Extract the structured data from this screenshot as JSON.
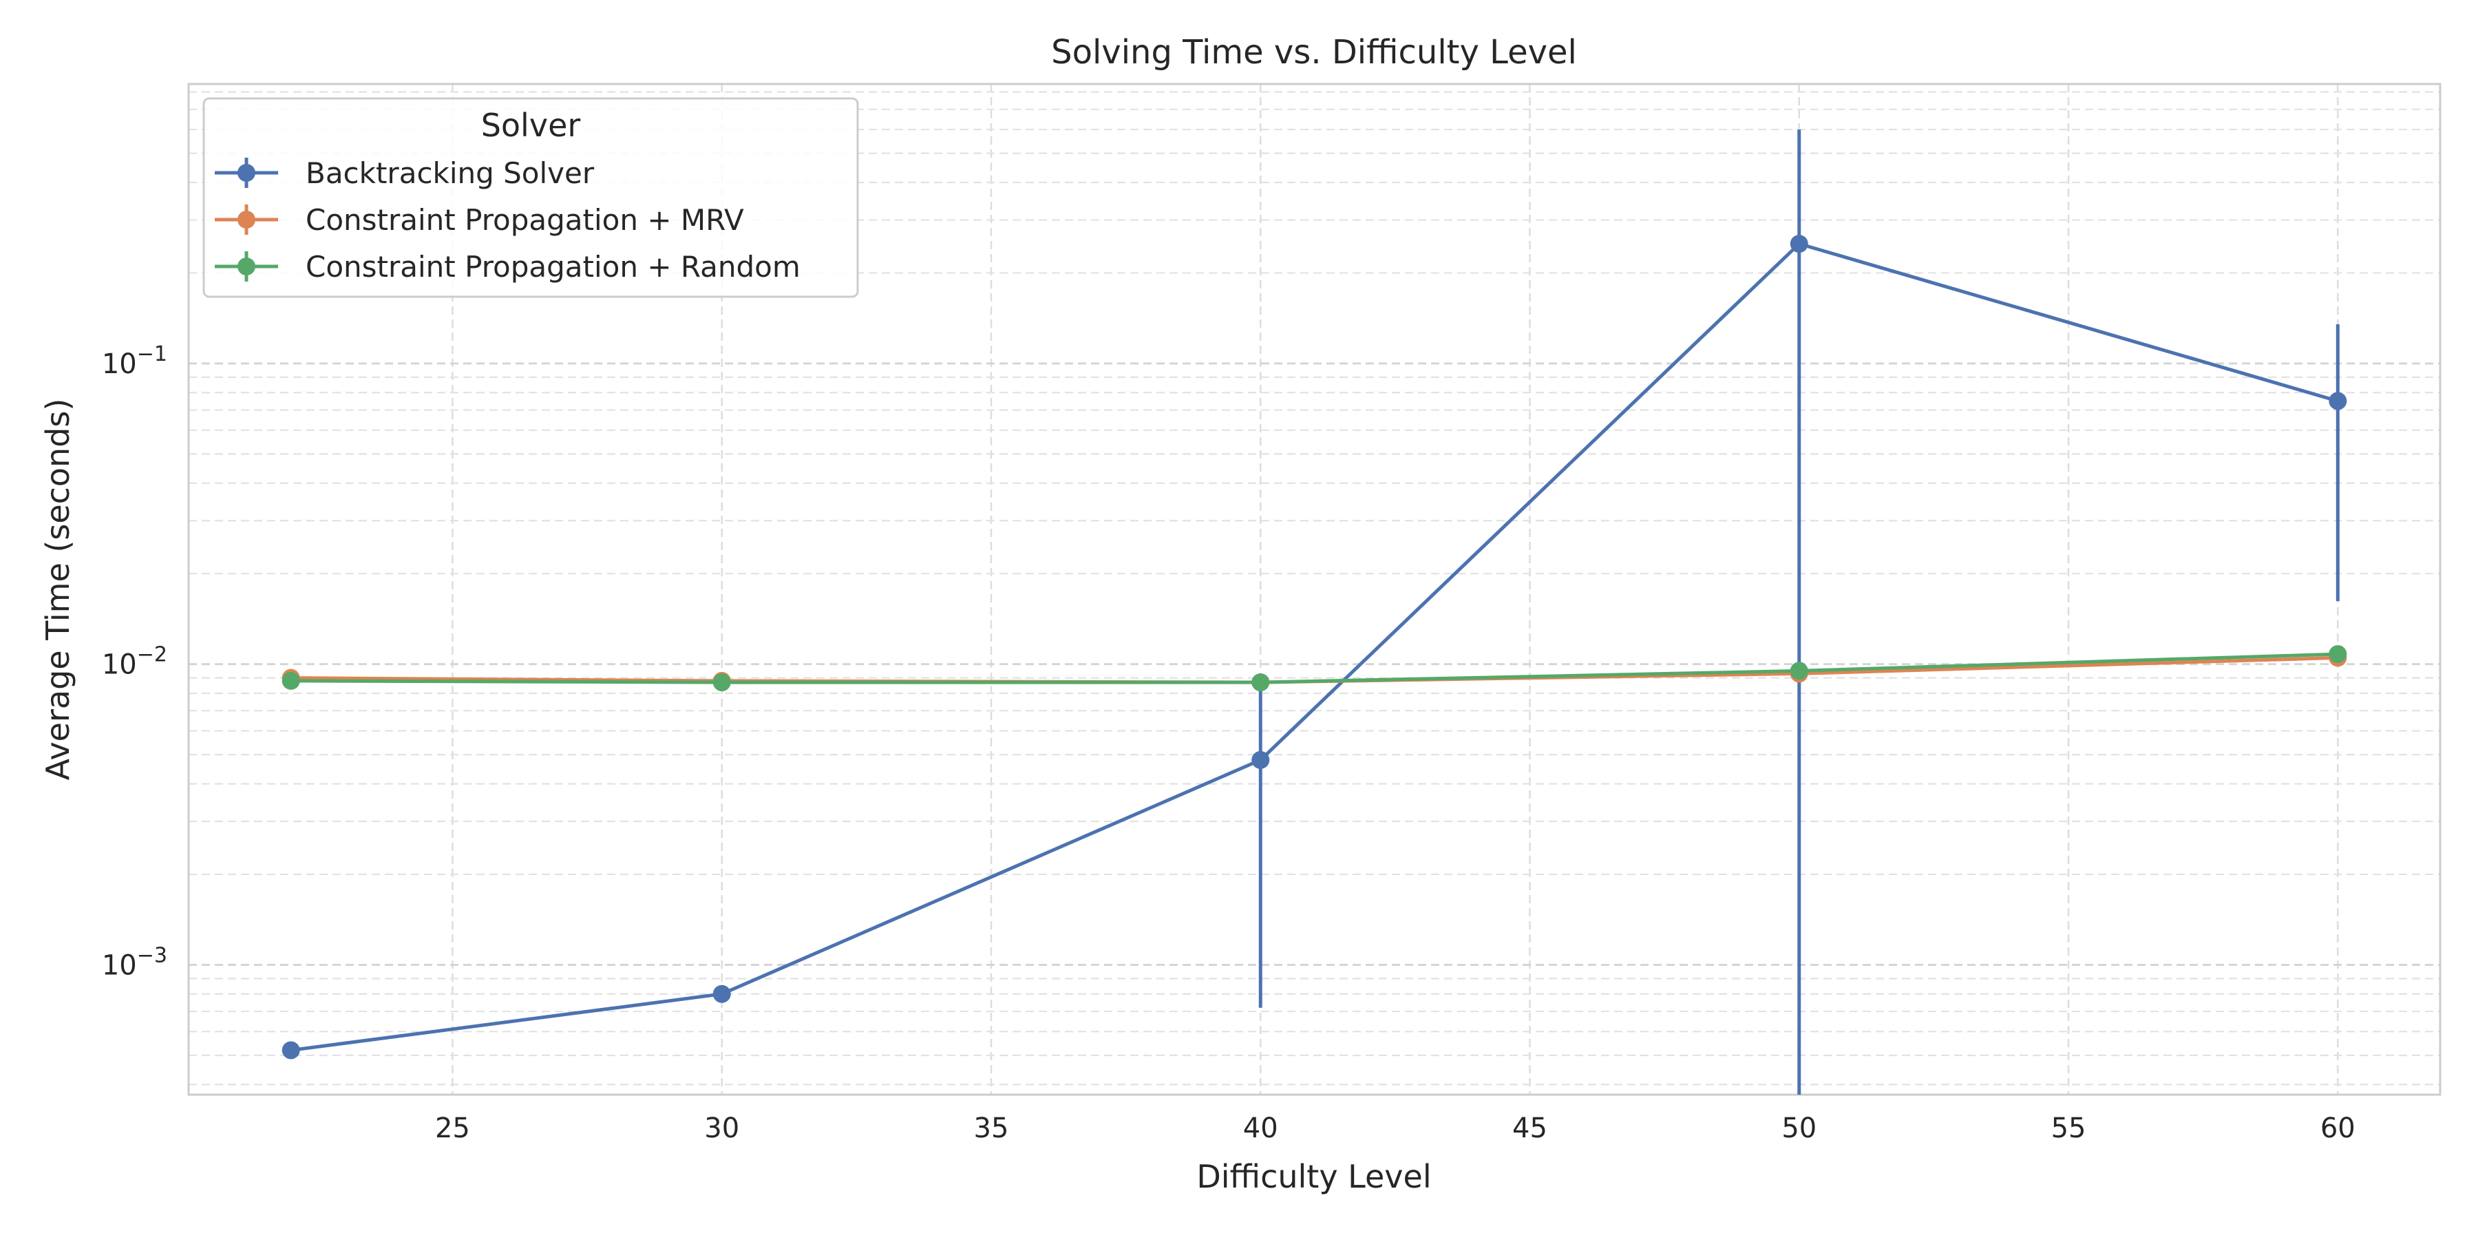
{
  "chart_data": {
    "type": "line",
    "title": "Solving Time vs. Difficulty Level",
    "xlabel": "Difficulty Level",
    "ylabel": "Average Time (seconds)",
    "xlim": [
      20.1,
      61.9
    ],
    "ylim": [
      0.00037,
      0.85
    ],
    "yscale": "log",
    "grid": true,
    "legend": {
      "title": "Solver",
      "placement": "top-left"
    },
    "x_ticks": [
      25,
      30,
      35,
      40,
      45,
      50,
      55,
      60
    ],
    "y_ticks": [
      {
        "value": 0.001,
        "base": "10",
        "exp": "−3"
      },
      {
        "value": 0.01,
        "base": "10",
        "exp": "−2"
      },
      {
        "value": 0.1,
        "base": "10",
        "exp": "−1"
      }
    ],
    "series": [
      {
        "name": "Backtracking Solver",
        "color": "#4c72b0",
        "x": [
          22,
          30,
          40,
          50,
          60
        ],
        "y": [
          0.00052,
          0.0008,
          0.0048,
          0.25,
          0.075
        ],
        "yerr_low": [
          null,
          null,
          0.00072,
          0.00037,
          0.0162
        ],
        "yerr_high": [
          null,
          null,
          0.0088,
          0.6,
          0.135
        ]
      },
      {
        "name": "Constraint Propagation + MRV",
        "color": "#dd8452",
        "x": [
          22,
          30,
          40,
          50,
          60
        ],
        "y": [
          0.009,
          0.0088,
          0.0087,
          0.0093,
          0.0105
        ]
      },
      {
        "name": "Constraint Propagation + Random",
        "color": "#55a868",
        "x": [
          22,
          30,
          40,
          50,
          60
        ],
        "y": [
          0.0088,
          0.0087,
          0.0087,
          0.0095,
          0.0108
        ]
      }
    ]
  }
}
